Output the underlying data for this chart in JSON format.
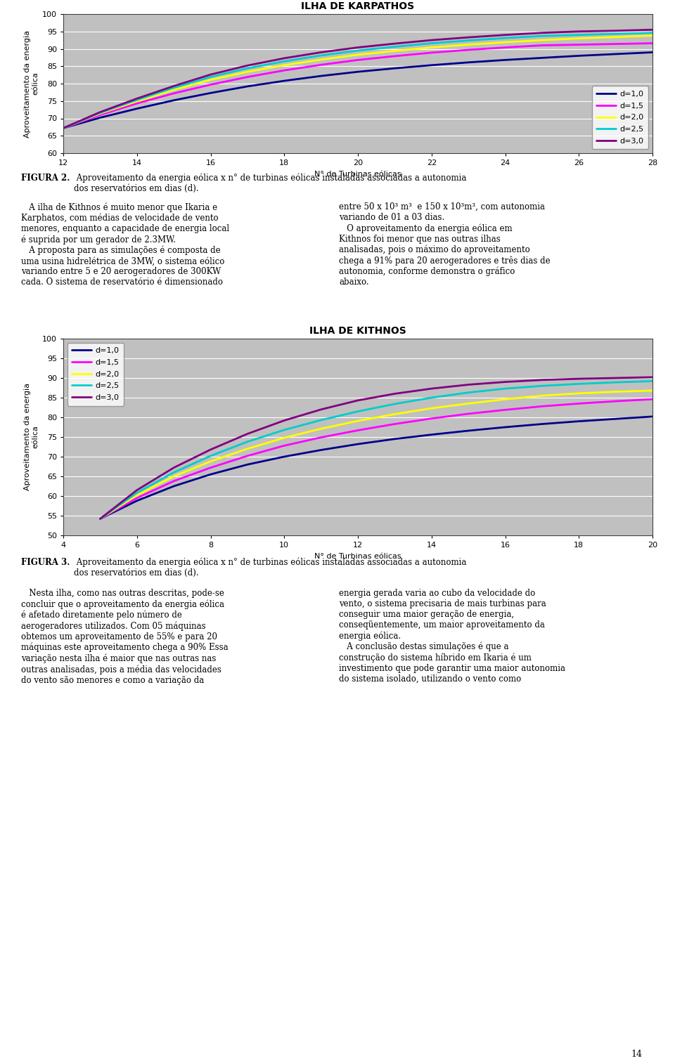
{
  "chart1": {
    "title": "ILHA DE KARPATHOS",
    "xlabel": "N° de Turbinas eólicas",
    "ylabel": "Aproveitamento da energia\neólica",
    "x": [
      12,
      13,
      14,
      15,
      16,
      17,
      18,
      19,
      20,
      21,
      22,
      23,
      24,
      25,
      26,
      27,
      28
    ],
    "series": {
      "d=1,0": {
        "color": "#00008B",
        "values": [
          67.2,
          70.2,
          72.8,
          75.2,
          77.3,
          79.2,
          80.8,
          82.2,
          83.4,
          84.4,
          85.3,
          86.1,
          86.8,
          87.4,
          88.0,
          88.5,
          89.0
        ]
      },
      "d=1,5": {
        "color": "#FF00FF",
        "values": [
          67.2,
          71.0,
          74.3,
          77.2,
          79.7,
          81.9,
          83.8,
          85.4,
          86.8,
          87.9,
          88.9,
          89.7,
          90.4,
          91.0,
          91.2,
          91.4,
          91.6
        ]
      },
      "d=2,0": {
        "color": "#FFFF00",
        "values": [
          67.2,
          71.4,
          74.9,
          78.2,
          81.1,
          83.4,
          85.3,
          86.9,
          88.3,
          89.4,
          90.4,
          91.2,
          91.9,
          92.5,
          93.0,
          93.4,
          93.8
        ]
      },
      "d=2,5": {
        "color": "#00CCCC",
        "values": [
          67.2,
          71.6,
          75.3,
          78.8,
          81.9,
          84.4,
          86.4,
          88.1,
          89.5,
          90.6,
          91.6,
          92.4,
          93.1,
          93.7,
          94.0,
          94.3,
          94.6
        ]
      },
      "d=3,0": {
        "color": "#800080",
        "values": [
          67.2,
          71.8,
          75.7,
          79.3,
          82.6,
          85.2,
          87.3,
          89.0,
          90.4,
          91.5,
          92.5,
          93.3,
          94.0,
          94.6,
          95.0,
          95.2,
          95.5
        ]
      }
    },
    "xlim": [
      12,
      28
    ],
    "ylim": [
      60,
      100
    ],
    "yticks": [
      60,
      65,
      70,
      75,
      80,
      85,
      90,
      95,
      100
    ],
    "xticks": [
      12,
      14,
      16,
      18,
      20,
      22,
      24,
      26,
      28
    ],
    "legend_loc": "lower right",
    "bg_color": "#C0C0C0"
  },
  "chart2": {
    "title": "ILHA DE KITHNOS",
    "xlabel": "N° de Turbinas eólicas",
    "ylabel": "Aproveitamento da energia\neólica",
    "x": [
      5,
      6,
      7,
      8,
      9,
      10,
      11,
      12,
      13,
      14,
      15,
      16,
      17,
      18,
      19,
      20
    ],
    "series": {
      "d=1,0": {
        "color": "#00008B",
        "values": [
          54.2,
          58.8,
          62.5,
          65.5,
          68.0,
          70.0,
          71.7,
          73.2,
          74.5,
          75.6,
          76.6,
          77.5,
          78.3,
          79.0,
          79.6,
          80.2
        ]
      },
      "d=1,5": {
        "color": "#FF00FF",
        "values": [
          54.2,
          59.5,
          63.8,
          67.2,
          70.2,
          72.8,
          74.9,
          76.7,
          78.3,
          79.7,
          80.9,
          81.9,
          82.8,
          83.5,
          84.1,
          84.6
        ]
      },
      "d=2,0": {
        "color": "#FFFF00",
        "values": [
          54.2,
          60.2,
          65.0,
          68.8,
          72.0,
          74.8,
          77.1,
          79.1,
          80.8,
          82.3,
          83.5,
          84.6,
          85.5,
          86.1,
          86.5,
          86.8
        ]
      },
      "d=2,5": {
        "color": "#00CCCC",
        "values": [
          54.2,
          60.8,
          66.0,
          70.2,
          73.8,
          76.8,
          79.3,
          81.5,
          83.4,
          85.0,
          86.3,
          87.3,
          88.0,
          88.5,
          88.9,
          89.2
        ]
      },
      "d=3,0": {
        "color": "#800080",
        "values": [
          54.2,
          61.5,
          67.2,
          71.8,
          75.8,
          79.2,
          82.0,
          84.3,
          86.0,
          87.3,
          88.3,
          89.0,
          89.5,
          89.8,
          90.0,
          90.2
        ]
      }
    },
    "xlim": [
      4,
      20
    ],
    "ylim": [
      50,
      100
    ],
    "yticks": [
      50,
      55,
      60,
      65,
      70,
      75,
      80,
      85,
      90,
      95,
      100
    ],
    "xticks": [
      4,
      6,
      8,
      10,
      12,
      14,
      16,
      18,
      20
    ],
    "legend_loc": "upper left",
    "bg_color": "#C0C0C0"
  },
  "page_num": "14",
  "outer_bg": "#FFFFFF",
  "line_width": 2.0,
  "chart1_border_color": "#808080",
  "chart2_border_color": "#808080"
}
